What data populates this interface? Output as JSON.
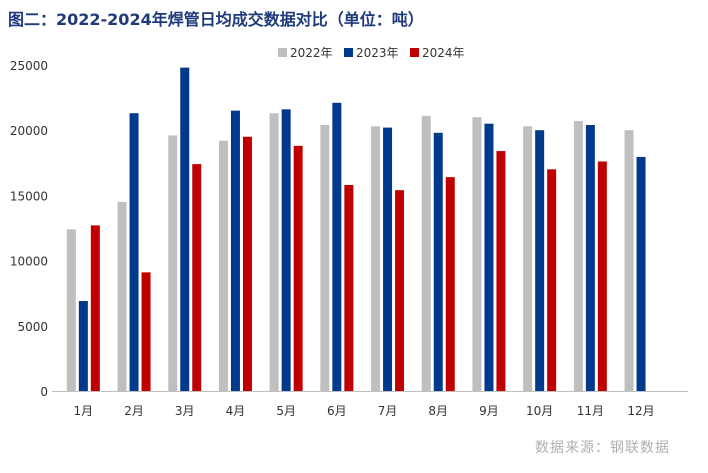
{
  "chart_data": {
    "type": "bar",
    "title": "图二：2022-2024年焊管日均成交数据对比（单位：吨）",
    "source": "数据来源：钢联数据",
    "categories": [
      "1月",
      "2月",
      "3月",
      "4月",
      "5月",
      "6月",
      "7月",
      "8月",
      "9月",
      "10月",
      "11月",
      "12月"
    ],
    "series": [
      {
        "name": "2022年",
        "color": "#bfbfbf",
        "values": [
          12400,
          14500,
          19600,
          19200,
          21300,
          20400,
          20300,
          21100,
          21000,
          20300,
          20700,
          20000
        ]
      },
      {
        "name": "2023年",
        "color": "#003a8c",
        "values": [
          6900,
          21300,
          24800,
          21500,
          21600,
          22100,
          20200,
          19800,
          20500,
          20000,
          20400,
          17950
        ]
      },
      {
        "name": "2024年",
        "color": "#c00000",
        "values": [
          12700,
          9100,
          17400,
          19500,
          18800,
          15800,
          15400,
          16400,
          18400,
          17000,
          17600,
          null
        ]
      }
    ],
    "ylim": [
      0,
      25000
    ],
    "yticks": [
      0,
      5000,
      10000,
      15000,
      20000,
      25000
    ],
    "grid": false,
    "legend": "top-center",
    "xlabel": "",
    "ylabel": ""
  }
}
